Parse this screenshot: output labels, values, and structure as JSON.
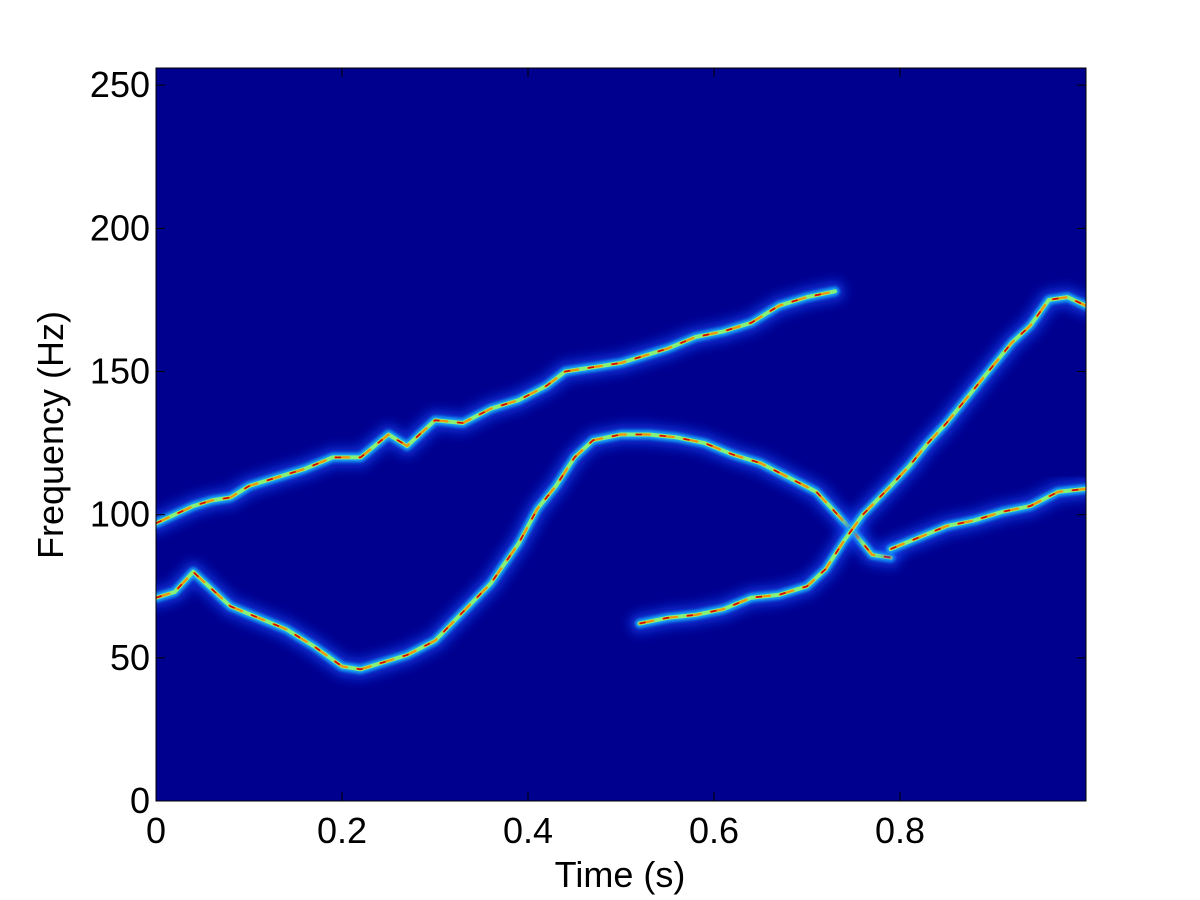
{
  "chart_data": {
    "type": "heatmap",
    "title": "",
    "xlabel": "Time (s)",
    "ylabel": "Frequency (Hz)",
    "xlim": [
      0,
      1
    ],
    "ylim": [
      0,
      256
    ],
    "x_ticks": [
      0,
      0.2,
      0.4,
      0.6,
      0.8
    ],
    "x_tick_labels": [
      "0",
      "0.2",
      "0.4",
      "0.6",
      "0.8"
    ],
    "y_ticks": [
      0,
      50,
      100,
      150,
      200,
      250
    ],
    "y_tick_labels": [
      "0",
      "50",
      "100",
      "150",
      "200",
      "250"
    ],
    "colormap": "jet",
    "background_color": "#00008f",
    "grid": false,
    "legend": "none",
    "ridges": [
      {
        "points": [
          [
            0.0,
            97
          ],
          [
            0.02,
            100
          ],
          [
            0.04,
            103
          ],
          [
            0.06,
            105
          ],
          [
            0.08,
            106
          ],
          [
            0.1,
            110
          ],
          [
            0.13,
            113
          ],
          [
            0.16,
            116
          ],
          [
            0.19,
            120
          ],
          [
            0.22,
            120
          ],
          [
            0.25,
            128
          ],
          [
            0.27,
            124
          ],
          [
            0.3,
            133
          ],
          [
            0.33,
            132
          ],
          [
            0.36,
            137
          ],
          [
            0.39,
            140
          ],
          [
            0.42,
            145
          ],
          [
            0.44,
            150
          ],
          [
            0.46,
            151
          ],
          [
            0.48,
            152
          ],
          [
            0.5,
            153
          ],
          [
            0.52,
            155
          ],
          [
            0.55,
            158
          ],
          [
            0.58,
            162
          ],
          [
            0.61,
            164
          ],
          [
            0.64,
            167
          ],
          [
            0.67,
            173
          ],
          [
            0.7,
            176
          ],
          [
            0.73,
            178
          ]
        ]
      },
      {
        "points": [
          [
            0.0,
            71
          ],
          [
            0.02,
            73
          ],
          [
            0.04,
            80
          ],
          [
            0.06,
            74
          ],
          [
            0.08,
            68
          ],
          [
            0.11,
            64
          ],
          [
            0.14,
            60
          ],
          [
            0.17,
            54
          ],
          [
            0.2,
            47
          ],
          [
            0.22,
            46
          ],
          [
            0.24,
            48
          ],
          [
            0.27,
            51
          ],
          [
            0.3,
            56
          ],
          [
            0.33,
            66
          ],
          [
            0.36,
            76
          ],
          [
            0.39,
            90
          ],
          [
            0.41,
            102
          ],
          [
            0.43,
            110
          ],
          [
            0.45,
            120
          ],
          [
            0.47,
            126
          ],
          [
            0.5,
            128
          ],
          [
            0.53,
            128
          ],
          [
            0.56,
            127
          ],
          [
            0.59,
            125
          ],
          [
            0.62,
            121
          ],
          [
            0.65,
            118
          ],
          [
            0.68,
            113
          ],
          [
            0.71,
            108
          ],
          [
            0.73,
            101
          ],
          [
            0.75,
            94
          ],
          [
            0.77,
            86
          ],
          [
            0.79,
            85
          ]
        ]
      },
      {
        "points": [
          [
            0.52,
            62
          ],
          [
            0.55,
            64
          ],
          [
            0.58,
            65
          ],
          [
            0.61,
            67
          ],
          [
            0.64,
            71
          ],
          [
            0.67,
            72
          ],
          [
            0.7,
            75
          ],
          [
            0.72,
            81
          ],
          [
            0.74,
            91
          ],
          [
            0.76,
            100
          ],
          [
            0.79,
            110
          ],
          [
            0.81,
            117
          ],
          [
            0.83,
            125
          ],
          [
            0.85,
            132
          ],
          [
            0.87,
            140
          ],
          [
            0.9,
            152
          ],
          [
            0.92,
            160
          ],
          [
            0.94,
            166
          ],
          [
            0.96,
            175
          ],
          [
            0.98,
            176
          ],
          [
            1.0,
            173
          ]
        ]
      },
      {
        "points": [
          [
            0.79,
            88
          ],
          [
            0.82,
            92
          ],
          [
            0.85,
            96
          ],
          [
            0.88,
            98
          ],
          [
            0.91,
            101
          ],
          [
            0.94,
            103
          ],
          [
            0.97,
            108
          ],
          [
            1.0,
            109
          ]
        ]
      }
    ]
  }
}
